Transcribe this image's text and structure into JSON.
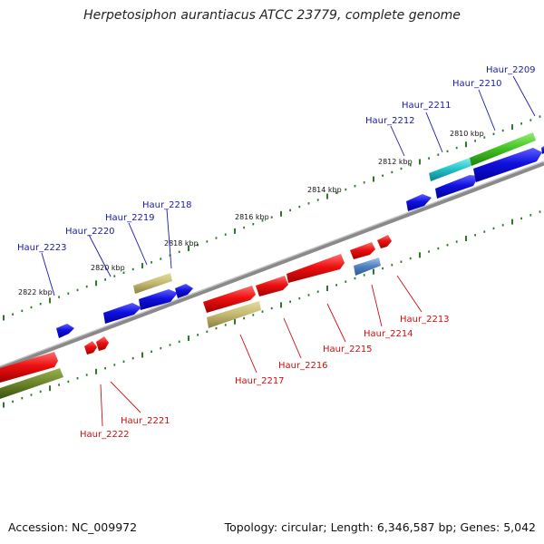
{
  "title": "Herpetosiphon aurantiacus ATCC 23779, complete genome",
  "footer": {
    "accession": "Accession: NC_009972",
    "topology": "Topology: circular; Length: 6,346,587 bp; Genes: 5,042"
  },
  "ticks": [
    "2810 kbp",
    "2812 kbp",
    "2814 kbp",
    "2816 kbp",
    "2818 kbp",
    "2820 kbp",
    "2822 kbp"
  ],
  "labels": {
    "top": [
      "Haur_2209",
      "Haur_2210",
      "Haur_2211",
      "Haur_2212",
      "Haur_2218",
      "Haur_2219",
      "Haur_2220",
      "Haur_2223"
    ],
    "bottom": [
      "Haur_2213",
      "Haur_2214",
      "Haur_2215",
      "Haur_2216",
      "Haur_2217",
      "Haur_2221",
      "Haur_2222"
    ]
  },
  "colors": {
    "forward_label": "#1a1aa8",
    "reverse_label": "#cc1010",
    "backbone": "#8a8a8a",
    "tick": "#2a7a2a"
  }
}
